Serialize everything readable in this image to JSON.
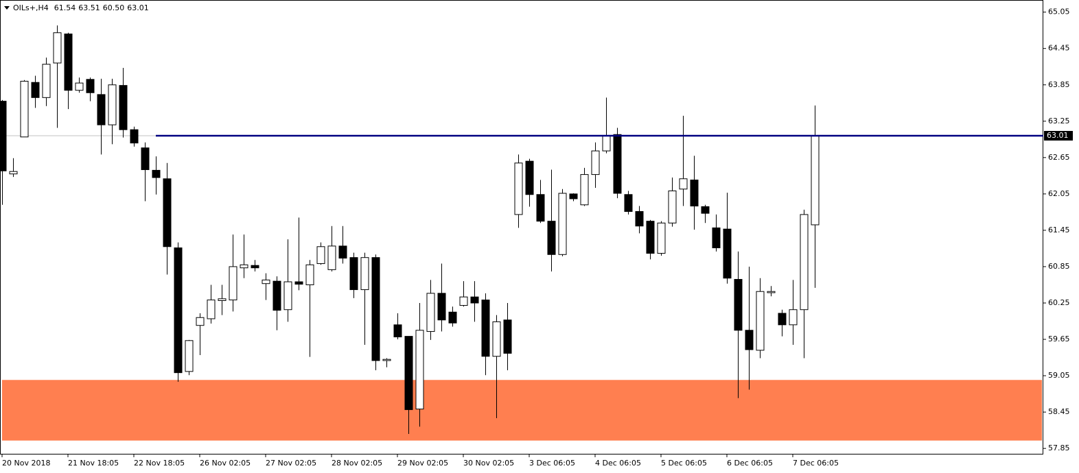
{
  "chart_data": {
    "type": "candlestick",
    "title": "OILs+,H4",
    "header_values": [
      61.54,
      63.51,
      60.5,
      63.01
    ],
    "header_value_labels": [
      "61.54",
      "63.51",
      "60.50",
      "63.01"
    ],
    "categories": [
      "20 Nov 2018",
      null,
      null,
      null,
      null,
      null,
      "21 Nov 18:05",
      null,
      null,
      null,
      null,
      null,
      "22 Nov 18:05",
      null,
      null,
      null,
      null,
      null,
      "26 Nov 02:05",
      null,
      null,
      null,
      null,
      null,
      "27 Nov 02:05",
      null,
      null,
      null,
      null,
      null,
      "28 Nov 02:05",
      null,
      null,
      null,
      null,
      null,
      "29 Nov 02:05",
      null,
      null,
      null,
      null,
      null,
      "30 Nov 02:05",
      null,
      null,
      null,
      null,
      null,
      "3 Dec 06:05",
      null,
      null,
      null,
      null,
      null,
      "4 Dec 06:05",
      null,
      null,
      null,
      null,
      null,
      "5 Dec 06:05",
      null,
      null,
      null,
      null,
      null,
      "6 Dec 06:05",
      null,
      null,
      null,
      null,
      null,
      "7 Dec 06:05",
      null,
      null
    ],
    "open": [
      63.58,
      62.38,
      62.99,
      63.89,
      63.64,
      64.21,
      64.69,
      63.76,
      63.94,
      63.69,
      63.19,
      63.84,
      63.11,
      62.81,
      62.44,
      62.3,
      61.16,
      59.12,
      59.88,
      59.99,
      60.29,
      60.3,
      60.83,
      60.87,
      60.57,
      60.61,
      60.14,
      60.6,
      60.55,
      60.9,
      60.8,
      61.19,
      61.0,
      60.47,
      61.0,
      59.3,
      59.89,
      59.7,
      58.5,
      59.78,
      60.41,
      60.1,
      60.21,
      60.35,
      60.3,
      59.37,
      59.97,
      61.71,
      62.59,
      62.04,
      61.6,
      61.05,
      62.05,
      61.87,
      62.37,
      62.76,
      63.03,
      62.04,
      61.76,
      61.6,
      61.07,
      61.57,
      62.13,
      62.28,
      61.84,
      61.49,
      61.47,
      60.64,
      59.8,
      59.47,
      60.42,
      60.08,
      59.89,
      60.14,
      61.54
    ],
    "high": [
      63.6,
      62.64,
      63.93,
      64.0,
      64.3,
      64.83,
      64.71,
      63.97,
      63.97,
      63.95,
      63.95,
      64.13,
      63.16,
      62.9,
      62.67,
      62.56,
      61.25,
      59.64,
      60.08,
      60.55,
      60.55,
      61.38,
      61.38,
      60.96,
      60.74,
      60.69,
      61.3,
      61.66,
      60.96,
      61.25,
      61.52,
      61.52,
      61.08,
      61.08,
      61.05,
      59.34,
      60.08,
      59.7,
      60.25,
      60.63,
      60.9,
      60.19,
      60.61,
      60.61,
      60.41,
      60.05,
      60.25,
      62.7,
      62.63,
      62.28,
      62.45,
      62.13,
      62.06,
      62.48,
      62.9,
      63.64,
      63.14,
      62.1,
      61.85,
      61.62,
      61.6,
      62.32,
      63.34,
      62.68,
      61.87,
      61.71,
      62.07,
      61.1,
      60.85,
      60.66,
      60.53,
      60.14,
      60.63,
      61.79,
      63.51
    ],
    "low": [
      61.87,
      62.33,
      62.99,
      63.47,
      63.5,
      63.14,
      63.45,
      63.72,
      63.58,
      62.7,
      62.87,
      62.98,
      62.83,
      61.93,
      62.04,
      60.72,
      58.95,
      59.06,
      59.39,
      59.91,
      60.05,
      60.11,
      60.66,
      60.77,
      60.3,
      59.8,
      59.94,
      60.46,
      59.36,
      60.88,
      60.77,
      60.9,
      60.33,
      59.56,
      59.14,
      59.19,
      59.65,
      58.09,
      58.21,
      59.64,
      59.78,
      59.86,
      60.19,
      59.94,
      59.06,
      58.35,
      59.14,
      61.49,
      61.84,
      61.57,
      60.77,
      61.02,
      61.93,
      61.85,
      62.15,
      62.72,
      61.98,
      61.71,
      61.4,
      60.97,
      61.03,
      61.51,
      61.85,
      61.46,
      61.57,
      61.1,
      60.57,
      58.68,
      58.82,
      59.34,
      60.36,
      59.7,
      59.56,
      59.34,
      60.5
    ],
    "close": [
      62.43,
      62.42,
      63.91,
      63.64,
      64.19,
      64.71,
      63.76,
      63.88,
      63.72,
      63.19,
      63.85,
      63.11,
      62.89,
      62.45,
      62.32,
      61.18,
      59.1,
      59.63,
      60.01,
      60.3,
      60.32,
      60.85,
      60.88,
      60.83,
      60.63,
      60.13,
      60.6,
      60.56,
      60.88,
      61.18,
      61.19,
      60.99,
      60.47,
      61.0,
      59.3,
      59.32,
      59.69,
      58.49,
      59.8,
      60.41,
      59.97,
      59.92,
      60.35,
      60.25,
      59.37,
      59.94,
      59.42,
      62.56,
      62.04,
      61.6,
      61.05,
      62.06,
      61.97,
      62.37,
      62.76,
      63.01,
      62.06,
      61.76,
      61.52,
      61.07,
      61.57,
      62.1,
      62.3,
      61.85,
      61.73,
      61.16,
      60.66,
      59.8,
      59.48,
      60.44,
      60.44,
      59.89,
      60.14,
      61.71,
      63.01
    ],
    "up_color": "#ffffff",
    "down_color": "#000000",
    "ylim": [
      57.75,
      65.25
    ],
    "yticks": [
      65.05,
      64.45,
      63.85,
      63.25,
      62.65,
      62.05,
      61.45,
      60.85,
      60.25,
      59.65,
      59.05,
      58.45,
      57.85
    ],
    "zones": [
      {
        "from": 57.98,
        "to": 58.98,
        "color": "#ff7f50"
      }
    ],
    "hline": {
      "value": 63.01,
      "color": "#000080"
    }
  }
}
